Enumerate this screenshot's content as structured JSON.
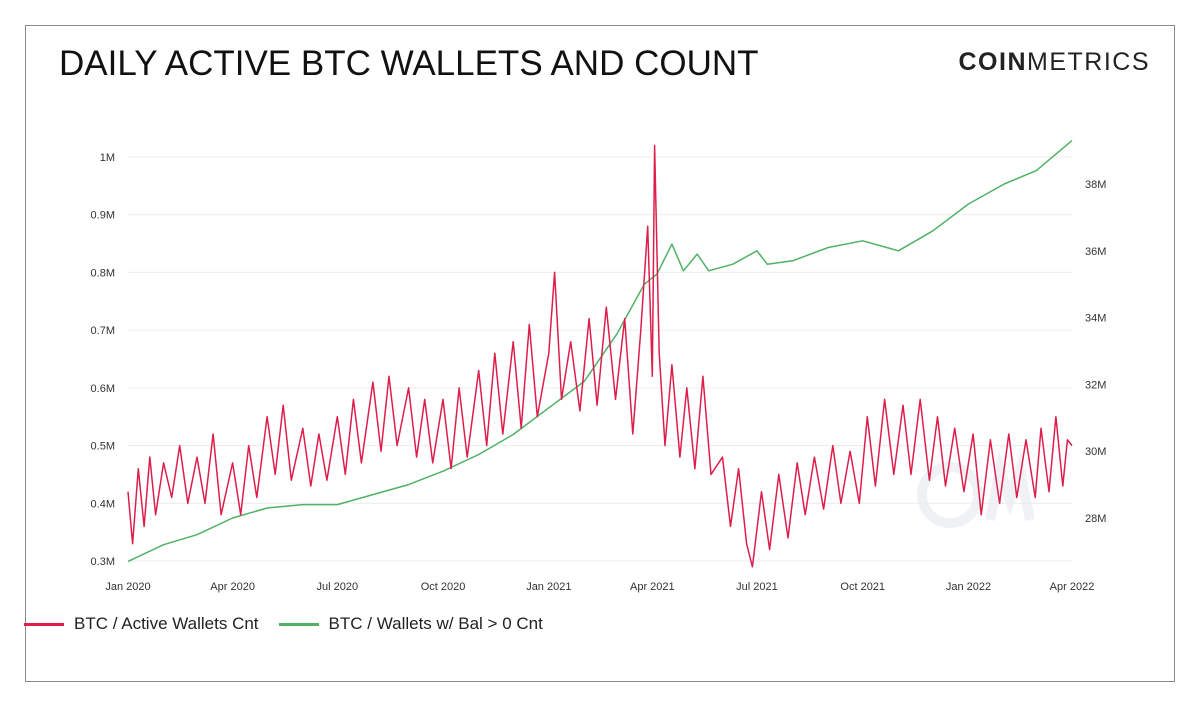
{
  "header": {
    "title": "DAILY ACTIVE BTC WALLETS AND COUNT",
    "brand_bold": "COIN",
    "brand_light": "METRICS"
  },
  "legend": {
    "items": [
      {
        "label": "BTC / Active Wallets Cnt",
        "color": "#dd1e4b"
      },
      {
        "label": "BTC / Wallets w/ Bal > 0 Cnt",
        "color": "#4fb264"
      }
    ]
  },
  "chart_data": {
    "type": "line",
    "title": "DAILY ACTIVE BTC WALLETS AND COUNT",
    "xlabel": "",
    "ylabel": "",
    "x_ticks": [
      "Jan 2020",
      "Apr 2020",
      "Jul 2020",
      "Oct 2020",
      "Jan 2021",
      "Apr 2021",
      "Jul 2021",
      "Oct 2021",
      "Jan 2022",
      "Apr 2022"
    ],
    "y_left_ticks": [
      "0.3M",
      "0.4M",
      "0.5M",
      "0.6M",
      "0.7M",
      "0.8M",
      "0.9M",
      "1M"
    ],
    "y_right_ticks": [
      "28M",
      "30M",
      "32M",
      "34M",
      "36M",
      "38M"
    ],
    "xlim": [
      "2020-01-01",
      "2022-04-01"
    ],
    "ylim_left": [
      0.3,
      1.0
    ],
    "ylim_right": [
      26.6,
      39.4
    ],
    "y_left_unit": "M",
    "y_right_unit": "M",
    "grid": true,
    "legend_position": "bottom-left",
    "series": [
      {
        "name": "BTC / Active Wallets Cnt",
        "axis": "left",
        "color": "#dd1e4b",
        "points": [
          [
            "2020-01-01",
            0.42
          ],
          [
            "2020-01-05",
            0.33
          ],
          [
            "2020-01-10",
            0.46
          ],
          [
            "2020-01-15",
            0.36
          ],
          [
            "2020-01-20",
            0.48
          ],
          [
            "2020-01-25",
            0.38
          ],
          [
            "2020-02-01",
            0.47
          ],
          [
            "2020-02-08",
            0.41
          ],
          [
            "2020-02-15",
            0.5
          ],
          [
            "2020-02-22",
            0.4
          ],
          [
            "2020-03-01",
            0.48
          ],
          [
            "2020-03-08",
            0.4
          ],
          [
            "2020-03-15",
            0.52
          ],
          [
            "2020-03-22",
            0.38
          ],
          [
            "2020-04-01",
            0.47
          ],
          [
            "2020-04-08",
            0.38
          ],
          [
            "2020-04-15",
            0.5
          ],
          [
            "2020-04-22",
            0.41
          ],
          [
            "2020-05-01",
            0.55
          ],
          [
            "2020-05-08",
            0.45
          ],
          [
            "2020-05-15",
            0.57
          ],
          [
            "2020-05-22",
            0.44
          ],
          [
            "2020-06-01",
            0.53
          ],
          [
            "2020-06-08",
            0.43
          ],
          [
            "2020-06-15",
            0.52
          ],
          [
            "2020-06-22",
            0.44
          ],
          [
            "2020-07-01",
            0.55
          ],
          [
            "2020-07-08",
            0.45
          ],
          [
            "2020-07-15",
            0.58
          ],
          [
            "2020-07-22",
            0.47
          ],
          [
            "2020-08-01",
            0.61
          ],
          [
            "2020-08-08",
            0.49
          ],
          [
            "2020-08-15",
            0.62
          ],
          [
            "2020-08-22",
            0.5
          ],
          [
            "2020-09-01",
            0.6
          ],
          [
            "2020-09-08",
            0.48
          ],
          [
            "2020-09-15",
            0.58
          ],
          [
            "2020-09-22",
            0.47
          ],
          [
            "2020-10-01",
            0.58
          ],
          [
            "2020-10-08",
            0.46
          ],
          [
            "2020-10-15",
            0.6
          ],
          [
            "2020-10-22",
            0.48
          ],
          [
            "2020-11-01",
            0.63
          ],
          [
            "2020-11-08",
            0.5
          ],
          [
            "2020-11-15",
            0.66
          ],
          [
            "2020-11-22",
            0.52
          ],
          [
            "2020-12-01",
            0.68
          ],
          [
            "2020-12-08",
            0.53
          ],
          [
            "2020-12-15",
            0.71
          ],
          [
            "2020-12-22",
            0.55
          ],
          [
            "2021-01-01",
            0.66
          ],
          [
            "2021-01-06",
            0.8
          ],
          [
            "2021-01-12",
            0.58
          ],
          [
            "2021-01-20",
            0.68
          ],
          [
            "2021-01-28",
            0.56
          ],
          [
            "2021-02-05",
            0.72
          ],
          [
            "2021-02-12",
            0.57
          ],
          [
            "2021-02-20",
            0.74
          ],
          [
            "2021-02-28",
            0.58
          ],
          [
            "2021-03-08",
            0.72
          ],
          [
            "2021-03-15",
            0.52
          ],
          [
            "2021-03-22",
            0.7
          ],
          [
            "2021-03-28",
            0.88
          ],
          [
            "2021-04-01",
            0.62
          ],
          [
            "2021-04-03",
            1.02
          ],
          [
            "2021-04-07",
            0.66
          ],
          [
            "2021-04-12",
            0.5
          ],
          [
            "2021-04-18",
            0.64
          ],
          [
            "2021-04-25",
            0.48
          ],
          [
            "2021-05-01",
            0.6
          ],
          [
            "2021-05-08",
            0.46
          ],
          [
            "2021-05-15",
            0.62
          ],
          [
            "2021-05-22",
            0.45
          ],
          [
            "2021-06-01",
            0.48
          ],
          [
            "2021-06-08",
            0.36
          ],
          [
            "2021-06-15",
            0.46
          ],
          [
            "2021-06-22",
            0.33
          ],
          [
            "2021-06-27",
            0.29
          ],
          [
            "2021-07-05",
            0.42
          ],
          [
            "2021-07-12",
            0.32
          ],
          [
            "2021-07-20",
            0.45
          ],
          [
            "2021-07-28",
            0.34
          ],
          [
            "2021-08-05",
            0.47
          ],
          [
            "2021-08-12",
            0.38
          ],
          [
            "2021-08-20",
            0.48
          ],
          [
            "2021-08-28",
            0.39
          ],
          [
            "2021-09-05",
            0.5
          ],
          [
            "2021-09-12",
            0.4
          ],
          [
            "2021-09-20",
            0.49
          ],
          [
            "2021-09-28",
            0.4
          ],
          [
            "2021-10-05",
            0.55
          ],
          [
            "2021-10-12",
            0.43
          ],
          [
            "2021-10-20",
            0.58
          ],
          [
            "2021-10-28",
            0.45
          ],
          [
            "2021-11-05",
            0.57
          ],
          [
            "2021-11-12",
            0.45
          ],
          [
            "2021-11-20",
            0.58
          ],
          [
            "2021-11-28",
            0.44
          ],
          [
            "2021-12-05",
            0.55
          ],
          [
            "2021-12-12",
            0.43
          ],
          [
            "2021-12-20",
            0.53
          ],
          [
            "2021-12-28",
            0.42
          ],
          [
            "2022-01-05",
            0.52
          ],
          [
            "2022-01-12",
            0.38
          ],
          [
            "2022-01-20",
            0.51
          ],
          [
            "2022-01-28",
            0.4
          ],
          [
            "2022-02-05",
            0.52
          ],
          [
            "2022-02-12",
            0.41
          ],
          [
            "2022-02-20",
            0.51
          ],
          [
            "2022-02-28",
            0.41
          ],
          [
            "2022-03-05",
            0.53
          ],
          [
            "2022-03-12",
            0.42
          ],
          [
            "2022-03-18",
            0.55
          ],
          [
            "2022-03-24",
            0.43
          ],
          [
            "2022-03-28",
            0.51
          ],
          [
            "2022-04-01",
            0.5
          ]
        ]
      },
      {
        "name": "BTC / Wallets w/ Bal > 0 Cnt",
        "axis": "right",
        "color": "#4fb264",
        "points": [
          [
            "2020-01-01",
            26.7
          ],
          [
            "2020-02-01",
            27.2
          ],
          [
            "2020-03-01",
            27.5
          ],
          [
            "2020-04-01",
            28.0
          ],
          [
            "2020-05-01",
            28.3
          ],
          [
            "2020-06-01",
            28.4
          ],
          [
            "2020-07-01",
            28.4
          ],
          [
            "2020-08-01",
            28.7
          ],
          [
            "2020-09-01",
            29.0
          ],
          [
            "2020-10-01",
            29.4
          ],
          [
            "2020-11-01",
            29.9
          ],
          [
            "2020-12-01",
            30.5
          ],
          [
            "2021-01-01",
            31.3
          ],
          [
            "2021-02-01",
            32.1
          ],
          [
            "2021-03-01",
            33.5
          ],
          [
            "2021-03-25",
            35.0
          ],
          [
            "2021-04-05",
            35.3
          ],
          [
            "2021-04-18",
            36.2
          ],
          [
            "2021-04-28",
            35.4
          ],
          [
            "2021-05-10",
            35.9
          ],
          [
            "2021-05-20",
            35.4
          ],
          [
            "2021-06-10",
            35.6
          ],
          [
            "2021-07-01",
            36.0
          ],
          [
            "2021-07-10",
            35.6
          ],
          [
            "2021-08-01",
            35.7
          ],
          [
            "2021-09-01",
            36.1
          ],
          [
            "2021-10-01",
            36.3
          ],
          [
            "2021-11-01",
            36.0
          ],
          [
            "2021-12-01",
            36.6
          ],
          [
            "2022-01-01",
            37.4
          ],
          [
            "2022-02-01",
            38.0
          ],
          [
            "2022-03-01",
            38.4
          ],
          [
            "2022-04-01",
            39.3
          ]
        ]
      }
    ]
  }
}
